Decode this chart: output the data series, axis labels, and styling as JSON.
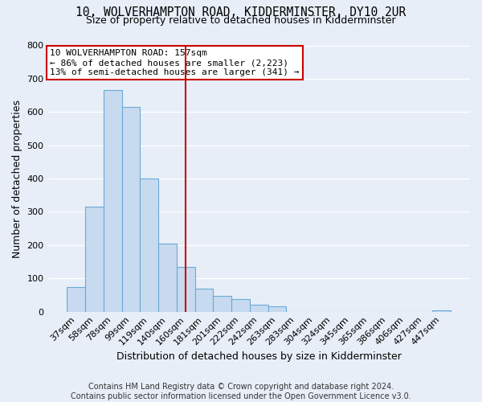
{
  "title": "10, WOLVERHAMPTON ROAD, KIDDERMINSTER, DY10 2UR",
  "subtitle": "Size of property relative to detached houses in Kidderminster",
  "xlabel": "Distribution of detached houses by size in Kidderminster",
  "ylabel": "Number of detached properties",
  "bar_labels": [
    "37sqm",
    "58sqm",
    "78sqm",
    "99sqm",
    "119sqm",
    "140sqm",
    "160sqm",
    "181sqm",
    "201sqm",
    "222sqm",
    "242sqm",
    "263sqm",
    "283sqm",
    "304sqm",
    "324sqm",
    "345sqm",
    "365sqm",
    "386sqm",
    "406sqm",
    "427sqm",
    "447sqm"
  ],
  "bar_values": [
    75,
    315,
    665,
    615,
    400,
    205,
    135,
    68,
    47,
    38,
    20,
    15,
    0,
    0,
    0,
    0,
    0,
    0,
    0,
    0,
    5
  ],
  "bar_color": "#c8daf0",
  "bar_edge_color": "#6aaad4",
  "vline_x": 6,
  "vline_color": "#cc0000",
  "annotation_text": "10 WOLVERHAMPTON ROAD: 157sqm\n← 86% of detached houses are smaller (2,223)\n13% of semi-detached houses are larger (341) →",
  "annotation_box_color": "#ffffff",
  "annotation_box_edge": "#cc0000",
  "ylim": [
    0,
    800
  ],
  "yticks": [
    0,
    100,
    200,
    300,
    400,
    500,
    600,
    700,
    800
  ],
  "footer": "Contains HM Land Registry data © Crown copyright and database right 2024.\nContains public sector information licensed under the Open Government Licence v3.0.",
  "bg_color": "#e8eef8",
  "title_fontsize": 10.5,
  "subtitle_fontsize": 9,
  "footer_fontsize": 7,
  "axis_label_fontsize": 9,
  "tick_fontsize": 8,
  "annotation_fontsize": 8
}
